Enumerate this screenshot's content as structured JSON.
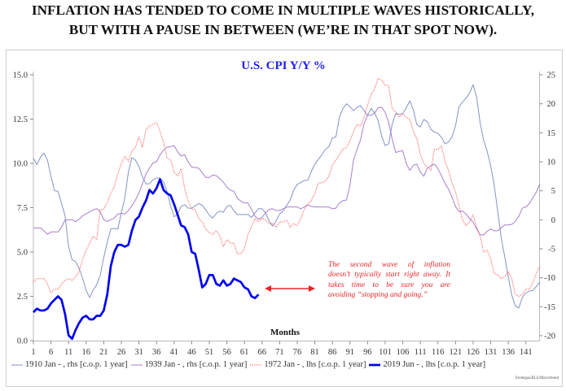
{
  "header": {
    "line1": "INFLATION HAS TENDED TO COME IN MULTIPLE WAVES HISTORICALLY,",
    "line2": "BUT WITH A PAUSE IN BETWEEN (WE’RE IN THAT SPOT NOW)."
  },
  "source": "Strategas/BLS/Macrobond",
  "chart_data": {
    "type": "line",
    "title": "U.S. CPI Y/Y %",
    "xlabel": "Months",
    "ylabel_left": "",
    "ylabel_right": "",
    "grid": false,
    "legend_position": "bottom",
    "x": {
      "range": [
        1,
        145
      ],
      "ticks": [
        1,
        6,
        11,
        16,
        21,
        26,
        31,
        36,
        41,
        46,
        51,
        56,
        61,
        66,
        71,
        76,
        81,
        86,
        91,
        96,
        101,
        106,
        111,
        116,
        121,
        126,
        131,
        136,
        141
      ],
      "tick_labels": [
        "1",
        "6",
        "11",
        "16",
        "21",
        "26",
        "31",
        "36",
        "41",
        "46",
        "51",
        "56",
        "61",
        "66",
        "71",
        "76",
        "81",
        "86",
        "91",
        "96",
        "101",
        "106",
        "111",
        "116",
        "121",
        "126",
        "131",
        "136",
        "141"
      ]
    },
    "y_left": {
      "range": [
        0,
        15
      ],
      "ticks": [
        0,
        2.5,
        5,
        7.5,
        10,
        12.5,
        15
      ],
      "tick_labels": [
        "0.0",
        "2.5",
        "5.0",
        "7.5",
        "10.0",
        "12.5",
        "15.0"
      ]
    },
    "y_right": {
      "range": [
        -20,
        25
      ],
      "ticks": [
        -20,
        -15,
        -10,
        -5,
        0,
        5,
        10,
        15,
        20,
        25
      ],
      "tick_labels": [
        "-20",
        "-15",
        "-10",
        "-5",
        "0",
        "5",
        "10",
        "15",
        "20",
        "25"
      ]
    },
    "series": [
      {
        "name": "1910 Jan - , rhs [c.o.p. 1 year]",
        "axis": "right",
        "color": "#8393c6",
        "line_style": "solid",
        "x_start": 1,
        "values": [
          10.6,
          9.5,
          10.8,
          11.5,
          10.3,
          7.5,
          5.0,
          4.9,
          2.8,
          0.7,
          -4.6,
          -6.9,
          -7.2,
          -8.4,
          -10.1,
          -12.2,
          -13.4,
          -12.1,
          -11.2,
          -9.6,
          -6.5,
          -3.9,
          -1.6,
          -1.5,
          -1.6,
          1.2,
          3.8,
          8.2,
          10.7,
          10.3,
          9.2,
          7.4,
          6.2,
          6.2,
          6.9,
          7.2,
          7.2,
          6.5,
          4.9,
          2.4,
          0.5,
          1.0,
          2.3,
          2.6,
          2.0,
          2.0,
          2.4,
          2.8,
          2.5,
          1.7,
          0.8,
          0.3,
          1.1,
          1.5,
          1.3,
          2.3,
          2.5,
          1.5,
          0.9,
          0.9,
          0.9,
          0.9,
          0.4,
          1.2,
          1.9,
          1.9,
          1.2,
          -0.2,
          -1.1,
          -0.2,
          1.0,
          1.5,
          2.5,
          3.4,
          5.1,
          6.1,
          6.4,
          6.8,
          6.8,
          8.3,
          9.6,
          10.4,
          11.2,
          12.1,
          12.6,
          14.1,
          14.3,
          17.7,
          19.2,
          20.0,
          19.5,
          18.8,
          19.4,
          19.7,
          18.8,
          18.0,
          19.2,
          18.4,
          17.1,
          14.4,
          12.8,
          13.1,
          16.5,
          18.3,
          18.2,
          18.3,
          19.3,
          20.5,
          19.0,
          16.4,
          16.0,
          17.3,
          16.9,
          15.6,
          15.1,
          14.9,
          14.2,
          13.1,
          13.4,
          14.3,
          16.2,
          19.5,
          20.3,
          21.0,
          21.8,
          23.3,
          21.2,
          16.7,
          13.7,
          11.8,
          9.3,
          5.9,
          1.5,
          -3.2,
          -6.4,
          -9.8,
          -13.0,
          -14.9,
          -15.2,
          -13.4,
          -12.6,
          -12.3,
          -12.2,
          -11.5,
          -10.7
        ]
      },
      {
        "name": "1939 Jan - , rhs [c.o.p. 1 year]",
        "axis": "right",
        "color": "#a87dcc",
        "line_style": "solid",
        "x_start": 1,
        "values": [
          -1.4,
          -1.4,
          -1.4,
          -1.9,
          -2.5,
          -2.1,
          -2.1,
          -2.1,
          -1.3,
          0.0,
          0.0,
          0.0,
          -0.35,
          0.1,
          0.7,
          1.0,
          1.35,
          1.7,
          1.9,
          1.4,
          0.0,
          -0.3,
          0.0,
          0.3,
          1.0,
          1.1,
          1.0,
          1.6,
          2.4,
          3.4,
          4.6,
          6.2,
          7.9,
          8.9,
          9.8,
          10.0,
          11.2,
          12.0,
          12.5,
          12.6,
          12.8,
          11.7,
          11.0,
          11.2,
          10.0,
          9.1,
          9.0,
          8.9,
          8.1,
          7.3,
          7.3,
          7.7,
          7.6,
          7.1,
          6.5,
          5.6,
          5.1,
          4.9,
          3.7,
          3.2,
          2.9,
          2.9,
          1.8,
          0.6,
          0.1,
          0.4,
          1.2,
          1.8,
          1.9,
          1.6,
          1.6,
          1.9,
          2.2,
          2.2,
          2.2,
          2.2,
          1.9,
          2.2,
          2.6,
          2.3,
          2.2,
          2.2,
          2.2,
          2.2,
          2.2,
          1.9,
          2.0,
          2.9,
          3.3,
          3.4,
          6.0,
          10.3,
          12.1,
          13.8,
          16.6,
          18.0,
          18.0,
          18.4,
          19.3,
          19.4,
          18.5,
          16.8,
          13.9,
          11.6,
          11.8,
          11.9,
          9.7,
          8.5,
          9.4,
          9.6,
          8.2,
          7.5,
          8.9,
          9.3,
          9.6,
          8.8,
          7.6,
          6.3,
          5.3,
          3.9,
          2.3,
          1.4,
          1.5,
          1.0,
          0.2,
          -0.4,
          -1.6,
          -2.6,
          -2.6,
          -2.0,
          -1.6,
          -1.9,
          -1.9,
          -1.4,
          -0.9,
          -0.9,
          -0.8,
          -0.3,
          0.6,
          2.0,
          2.2,
          2.8,
          3.8,
          4.8,
          6.2
        ]
      },
      {
        "name": "1972 Jan - , lhs [c.o.p. 1 year]",
        "axis": "left",
        "color": "#ff5a5a",
        "line_style": "dotted",
        "x_start": 1,
        "values": [
          3.3,
          3.5,
          3.5,
          3.5,
          3.2,
          2.7,
          2.9,
          2.9,
          3.2,
          3.4,
          3.5,
          3.4,
          3.6,
          3.9,
          4.6,
          5.1,
          5.5,
          5.9,
          5.7,
          7.4,
          7.4,
          7.8,
          8.3,
          8.7,
          9.4,
          10.0,
          10.4,
          10.1,
          10.7,
          10.9,
          11.5,
          10.9,
          11.9,
          12.1,
          12.2,
          12.3,
          11.8,
          11.2,
          10.3,
          10.2,
          9.5,
          9.3,
          9.7,
          8.6,
          7.9,
          7.4,
          7.4,
          6.9,
          6.7,
          6.3,
          6.1,
          6.0,
          6.2,
          5.9,
          5.3,
          5.7,
          5.5,
          5.5,
          4.9,
          4.9,
          5.2,
          6.0,
          6.4,
          6.9,
          6.7,
          6.9,
          6.8,
          6.6,
          6.6,
          6.4,
          6.7,
          6.7,
          6.8,
          6.4,
          6.6,
          6.5,
          6.9,
          7.4,
          7.7,
          7.9,
          8.3,
          8.9,
          8.9,
          9.0,
          9.3,
          9.9,
          10.2,
          10.5,
          10.8,
          10.9,
          11.3,
          11.8,
          12.2,
          12.1,
          12.6,
          13.3,
          13.9,
          14.2,
          14.8,
          14.7,
          14.4,
          14.4,
          13.1,
          12.9,
          12.6,
          12.8,
          12.6,
          12.5,
          11.8,
          11.4,
          10.5,
          10.0,
          9.8,
          9.6,
          10.8,
          10.8,
          11.0,
          10.1,
          9.6,
          8.9,
          8.4,
          7.6,
          6.8,
          6.5,
          6.7,
          7.1,
          6.4,
          5.9,
          5.0,
          5.1,
          4.6,
          3.8,
          3.7,
          3.5,
          3.6,
          3.9,
          3.5,
          2.6,
          2.5,
          2.6,
          2.9,
          2.9,
          3.3,
          3.8,
          4.2
        ]
      },
      {
        "name": "2019 Jun - , lhs [c.o.p. 1 year]",
        "axis": "left",
        "color": "#0000ee",
        "line_style": "bold",
        "x_start": 1,
        "values": [
          1.6,
          1.8,
          1.7,
          1.7,
          1.8,
          2.1,
          2.3,
          2.5,
          2.3,
          1.5,
          0.3,
          0.1,
          0.6,
          1.0,
          1.3,
          1.4,
          1.2,
          1.2,
          1.4,
          1.4,
          1.7,
          2.6,
          4.2,
          5.0,
          5.4,
          5.4,
          5.3,
          5.4,
          6.2,
          6.8,
          7.0,
          7.5,
          7.9,
          8.5,
          8.3,
          8.6,
          9.1,
          8.5,
          8.3,
          8.2,
          7.7,
          7.1,
          6.5,
          6.4,
          6.0,
          5.0,
          4.9,
          4.0,
          3.0,
          3.2,
          3.7,
          3.7,
          3.2,
          3.1,
          3.4,
          3.1,
          3.2,
          3.5,
          3.4,
          3.3,
          3.0,
          2.9,
          2.5,
          2.4,
          2.6
        ]
      }
    ],
    "annotation": {
      "lines": [
        "The second wave of inflation",
        "doesn’t typically start right away. It",
        "takes time to be sure you are",
        "avoiding “stopping and going.”"
      ],
      "color": "#e8262a",
      "arrow": "double-headed"
    }
  }
}
